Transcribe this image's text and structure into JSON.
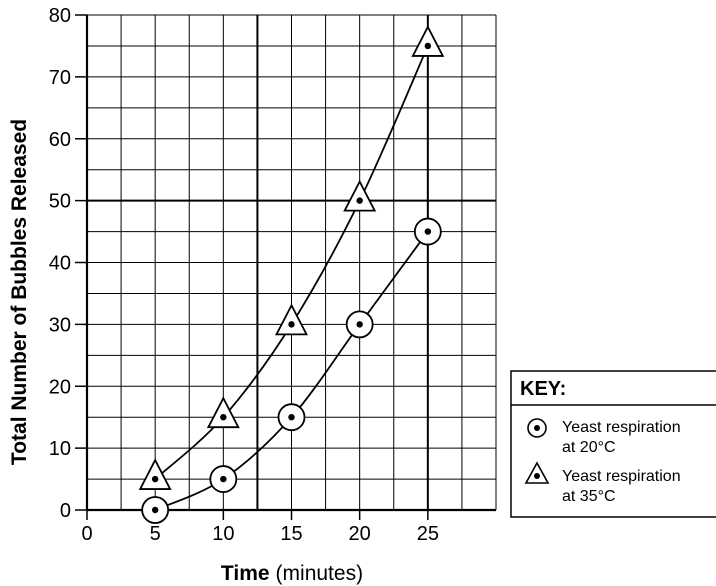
{
  "chart_data": {
    "type": "line",
    "title": "",
    "xlabel": "Time",
    "xlabel_unit": "(minutes)",
    "ylabel": "Total Number of Bubbles Released",
    "xlim": [
      0,
      30
    ],
    "ylim": [
      0,
      80
    ],
    "x_ticks": [
      "0",
      "5",
      "10",
      "15",
      "20",
      "25"
    ],
    "y_ticks": [
      "0",
      "10",
      "20",
      "30",
      "40",
      "50",
      "60",
      "70",
      "80"
    ],
    "grid": true,
    "legend": {
      "title": "KEY:",
      "placement": "right",
      "entries": [
        {
          "line1": "Yeast respiration",
          "line2": "at 20°C",
          "marker": "circle"
        },
        {
          "line1": "Yeast respiration",
          "line2": "at 35°C",
          "marker": "triangle"
        }
      ]
    },
    "series": [
      {
        "marker": "circle",
        "x": [
          5,
          10,
          15,
          20,
          25
        ],
        "values": [
          0,
          5,
          15,
          30,
          45
        ]
      },
      {
        "marker": "triangle",
        "x": [
          5,
          10,
          15,
          20,
          25
        ],
        "values": [
          5,
          15,
          30,
          50,
          75
        ]
      }
    ]
  }
}
